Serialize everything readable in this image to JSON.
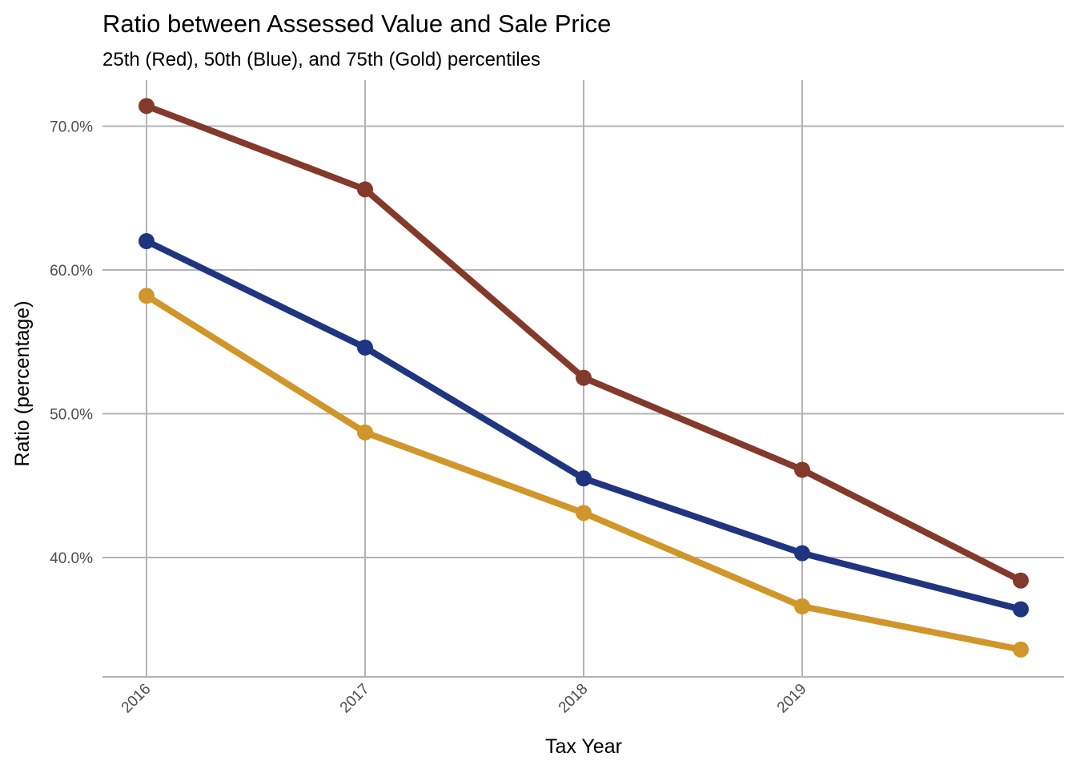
{
  "chart_data": {
    "type": "line",
    "title": "Ratio between Assessed Value and Sale Price",
    "subtitle": "25th (Red), 50th (Blue), and 75th (Gold) percentiles",
    "xlabel": "Tax Year",
    "ylabel": "Ratio (percentage)",
    "x": [
      2016,
      2017,
      2018,
      2019,
      2020
    ],
    "x_tick_labels": [
      "2016",
      "2017",
      "2018",
      "2019"
    ],
    "x_tick_values": [
      2016,
      2017,
      2018,
      2019
    ],
    "y_ticks": [
      40,
      50,
      60,
      70
    ],
    "y_tick_labels": [
      "40.0%",
      "50.0%",
      "60.0%",
      "70.0%"
    ],
    "ylim": [
      31.7,
      73.2
    ],
    "xlim": [
      2015.8,
      2020.2
    ],
    "grid": true,
    "series": [
      {
        "color": "#833a2a",
        "values": [
          71.4,
          65.6,
          52.5,
          46.1,
          38.4
        ]
      },
      {
        "color": "#203580",
        "values": [
          62.0,
          54.6,
          45.5,
          40.3,
          36.4
        ]
      },
      {
        "color": "#d09629",
        "values": [
          58.2,
          48.7,
          43.1,
          36.6,
          33.6
        ]
      }
    ]
  }
}
